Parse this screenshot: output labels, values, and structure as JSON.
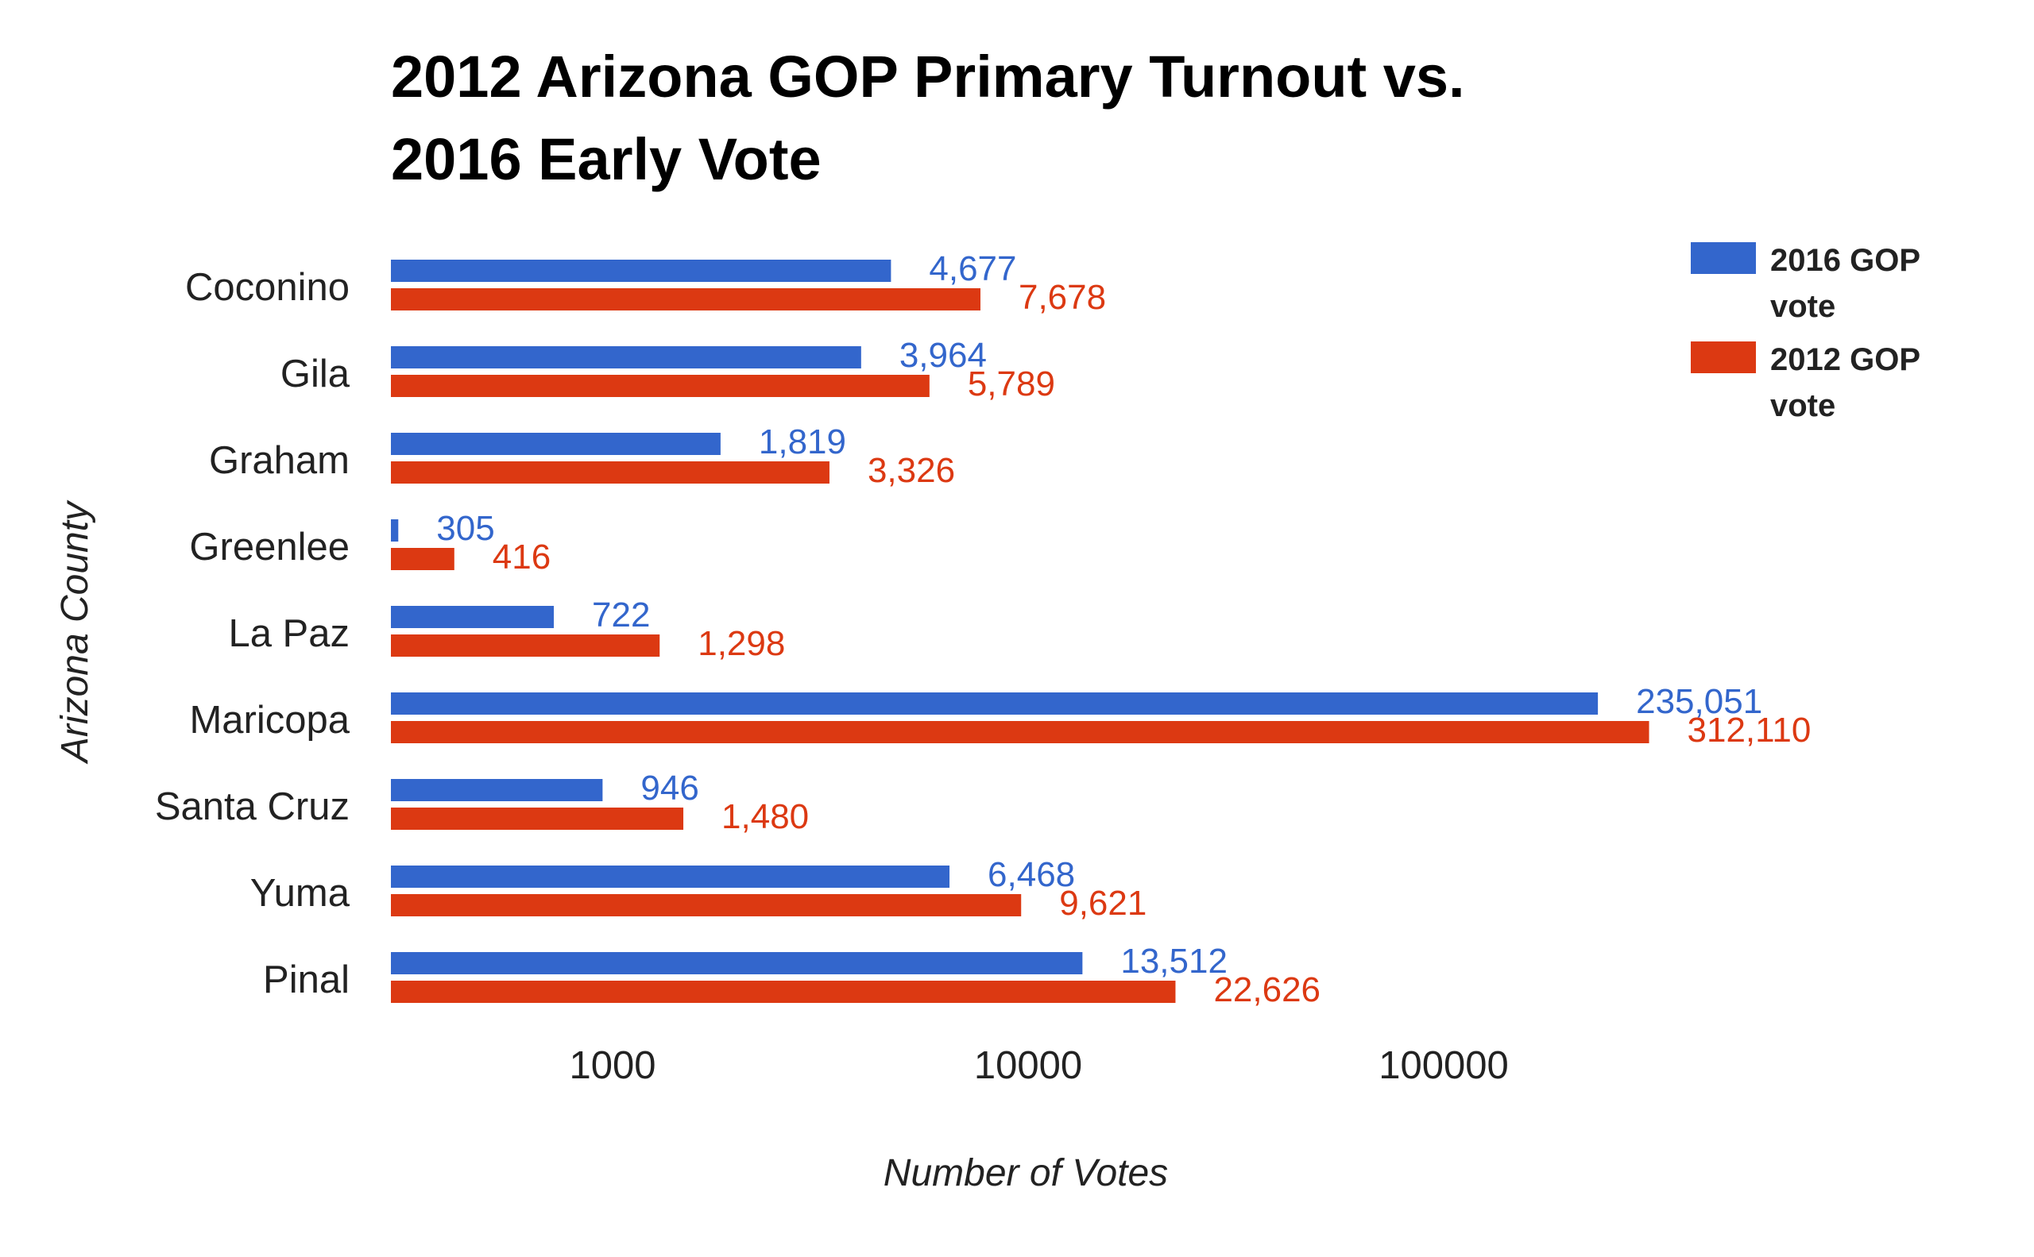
{
  "chart_data": {
    "type": "bar",
    "orientation": "horizontal",
    "title": [
      "2012 Arizona GOP Primary Turnout vs.",
      "2016 Early Vote"
    ],
    "xlabel": "Number of Votes",
    "ylabel": "Arizona County",
    "x_scale": "log",
    "xlim": [
      292,
      1000000
    ],
    "x_ticks": [
      {
        "value": 1000,
        "label": "1000"
      },
      {
        "value": 10000,
        "label": "10000"
      },
      {
        "value": 100000,
        "label": "100000"
      }
    ],
    "grid": false,
    "legend_position": "top-right",
    "categories": [
      "Coconino",
      "Gila",
      "Graham",
      "Greenlee",
      "La Paz",
      "Maricopa",
      "Santa Cruz",
      "Yuma",
      "Pinal"
    ],
    "series": [
      {
        "name": [
          "2016 GOP",
          "vote"
        ],
        "color": "#3366cc",
        "values": [
          4677,
          3964,
          1819,
          305,
          722,
          235051,
          946,
          6468,
          13512
        ],
        "labels": [
          "4,677",
          "3,964",
          "1,819",
          "305",
          "722",
          "235,051",
          "946",
          "6,468",
          "13,512"
        ]
      },
      {
        "name": [
          "2012 GOP",
          "vote"
        ],
        "color": "#dc3912",
        "values": [
          7678,
          5789,
          3326,
          416,
          1298,
          312110,
          1480,
          9621,
          22626
        ],
        "labels": [
          "7,678",
          "5,789",
          "3,326",
          "416",
          "1,298",
          "312,110",
          "1,480",
          "9,621",
          "22,626"
        ]
      }
    ]
  }
}
